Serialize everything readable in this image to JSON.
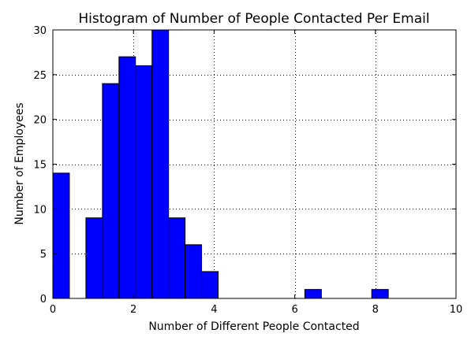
{
  "chart_data": {
    "type": "bar",
    "title": "Histogram of Number of People Contacted Per Email",
    "xlabel": "Number of Different People Contacted",
    "ylabel": "Number of Employees",
    "xlim": [
      0,
      10
    ],
    "ylim": [
      0,
      30
    ],
    "xticks": [
      0,
      2,
      4,
      6,
      8,
      10
    ],
    "yticks": [
      0,
      5,
      10,
      15,
      20,
      25,
      30
    ],
    "grid": true,
    "bar_color": "#0000ff",
    "bins": [
      {
        "x0": 0.0,
        "x1": 0.41,
        "count": 14
      },
      {
        "x0": 0.82,
        "x1": 1.23,
        "count": 9
      },
      {
        "x0": 1.23,
        "x1": 1.64,
        "count": 24
      },
      {
        "x0": 1.64,
        "x1": 2.05,
        "count": 27
      },
      {
        "x0": 2.05,
        "x1": 2.46,
        "count": 26
      },
      {
        "x0": 2.46,
        "x1": 2.87,
        "count": 30
      },
      {
        "x0": 2.87,
        "x1": 3.28,
        "count": 9
      },
      {
        "x0": 3.28,
        "x1": 3.69,
        "count": 6
      },
      {
        "x0": 3.69,
        "x1": 4.1,
        "count": 3
      },
      {
        "x0": 6.25,
        "x1": 6.66,
        "count": 1
      },
      {
        "x0": 7.91,
        "x1": 8.32,
        "count": 1
      }
    ]
  }
}
